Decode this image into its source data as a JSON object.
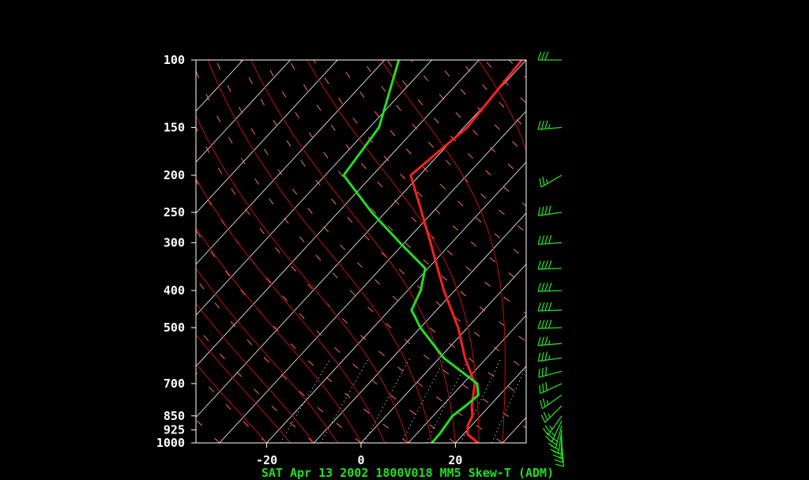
{
  "chart_data": {
    "type": "line",
    "caption": "SAT Apr 13 2002 1800V018 MM5 Skew-T (ADM)",
    "pressure_ticks": [
      1000,
      925,
      850,
      700,
      500,
      400,
      300,
      250,
      200,
      150,
      100
    ],
    "pressure_tick_labels": [
      "1000",
      "925",
      "850",
      "700",
      "500",
      "400",
      "300",
      "250",
      "200",
      "150",
      "100"
    ],
    "temperature_ticks": [
      -20,
      0,
      20
    ],
    "temperature_tick_labels": [
      "-20",
      "0",
      "20"
    ],
    "xlim_at_1000hPa": [
      -35,
      35
    ],
    "ylim_hPa": [
      1000,
      100
    ],
    "y_scale": "log",
    "skew_degC_per_log10p": 75,
    "background_lines": [
      "isotherms",
      "dry-adiabats",
      "moist-adiabats",
      "mixing-ratio"
    ],
    "series": [
      {
        "role": "temperature",
        "color": "#ff2020",
        "points": [
          {
            "p": 1000,
            "t": 24.8
          },
          {
            "p": 950,
            "t": 20.9
          },
          {
            "p": 900,
            "t": 19.2
          },
          {
            "p": 850,
            "t": 18.3
          },
          {
            "p": 800,
            "t": 16.2
          },
          {
            "p": 700,
            "t": 12.5
          },
          {
            "p": 600,
            "t": 5.4
          },
          {
            "p": 500,
            "t": -2.0
          },
          {
            "p": 400,
            "t": -12.3
          },
          {
            "p": 300,
            "t": -24.5
          },
          {
            "p": 250,
            "t": -32.3
          },
          {
            "p": 200,
            "t": -41.9
          },
          {
            "p": 150,
            "t": -39.3
          },
          {
            "p": 100,
            "t": -40.9
          }
        ]
      },
      {
        "role": "dewpoint",
        "color": "#22dd22",
        "points": [
          {
            "p": 1000,
            "t": 15.0
          },
          {
            "p": 950,
            "t": 14.9
          },
          {
            "p": 850,
            "t": 14.1
          },
          {
            "p": 800,
            "t": 14.9
          },
          {
            "p": 750,
            "t": 15.5
          },
          {
            "p": 700,
            "t": 13.0
          },
          {
            "p": 600,
            "t": 0.9
          },
          {
            "p": 500,
            "t": -10.0
          },
          {
            "p": 450,
            "t": -15.3
          },
          {
            "p": 400,
            "t": -17.2
          },
          {
            "p": 350,
            "t": -20.6
          },
          {
            "p": 300,
            "t": -31.0
          },
          {
            "p": 250,
            "t": -42.9
          },
          {
            "p": 200,
            "t": -56.1
          },
          {
            "p": 150,
            "t": -58.0
          },
          {
            "p": 100,
            "t": -67.0
          }
        ]
      }
    ],
    "wind_barbs": {
      "color": "#22dd22",
      "units": "kt",
      "levels": [
        {
          "p": 1000,
          "dir": 175,
          "spd": 10
        },
        {
          "p": 975,
          "dir": 178,
          "spd": 15
        },
        {
          "p": 950,
          "dir": 182,
          "spd": 20
        },
        {
          "p": 925,
          "dir": 188,
          "spd": 20
        },
        {
          "p": 900,
          "dir": 195,
          "spd": 25
        },
        {
          "p": 875,
          "dir": 205,
          "spd": 25
        },
        {
          "p": 850,
          "dir": 215,
          "spd": 25
        },
        {
          "p": 800,
          "dir": 225,
          "spd": 25
        },
        {
          "p": 750,
          "dir": 235,
          "spd": 25
        },
        {
          "p": 700,
          "dir": 245,
          "spd": 30
        },
        {
          "p": 650,
          "dir": 255,
          "spd": 30
        },
        {
          "p": 600,
          "dir": 262,
          "spd": 35
        },
        {
          "p": 550,
          "dir": 265,
          "spd": 35
        },
        {
          "p": 500,
          "dir": 268,
          "spd": 40
        },
        {
          "p": 450,
          "dir": 268,
          "spd": 40
        },
        {
          "p": 400,
          "dir": 268,
          "spd": 40
        },
        {
          "p": 350,
          "dir": 268,
          "spd": 40
        },
        {
          "p": 300,
          "dir": 266,
          "spd": 40
        },
        {
          "p": 250,
          "dir": 262,
          "spd": 40
        },
        {
          "p": 200,
          "dir": 240,
          "spd": 25
        },
        {
          "p": 150,
          "dir": 265,
          "spd": 35
        },
        {
          "p": 100,
          "dir": 270,
          "spd": 30
        }
      ]
    }
  }
}
